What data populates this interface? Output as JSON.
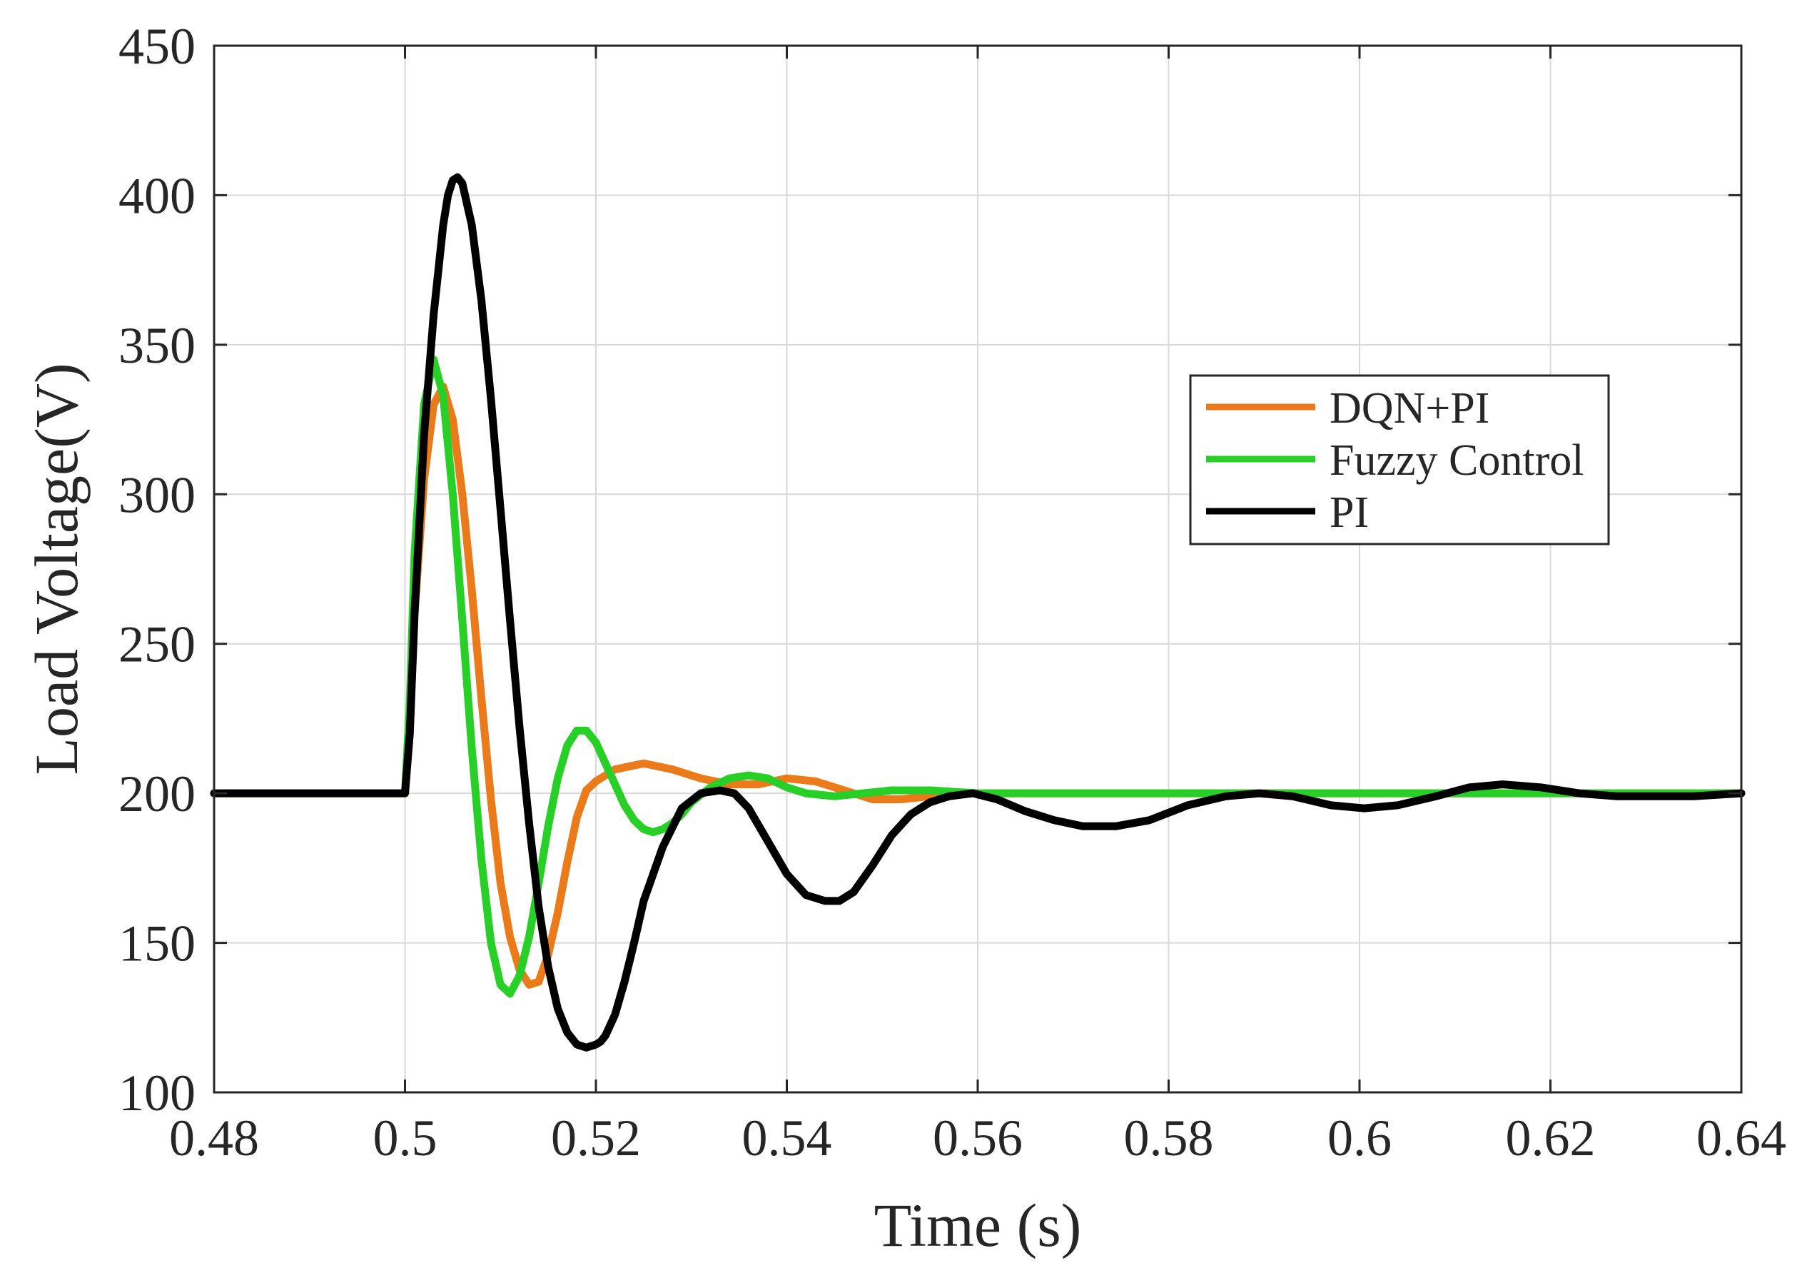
{
  "chart_data": {
    "type": "line",
    "title": "",
    "xlabel": "Time (s)",
    "ylabel": "Load Voltage(V)",
    "xlim": [
      0.48,
      0.64
    ],
    "ylim": [
      100,
      450
    ],
    "grid": true,
    "legend_position": "upper-right",
    "x_ticks": [
      0.48,
      0.5,
      0.52,
      0.54,
      0.56,
      0.58,
      0.6,
      0.62,
      0.64
    ],
    "x_tick_labels": [
      "0.48",
      "0.5",
      "0.52",
      "0.54",
      "0.56",
      "0.58",
      "0.6",
      "0.62",
      "0.64"
    ],
    "y_ticks": [
      100,
      150,
      200,
      250,
      300,
      350,
      400,
      450
    ],
    "y_tick_labels": [
      "100",
      "150",
      "200",
      "250",
      "300",
      "350",
      "400",
      "450"
    ],
    "series": [
      {
        "name": "DQN+PI",
        "color": "#ea7a1a",
        "x": [
          0.48,
          0.5,
          0.5005,
          0.501,
          0.502,
          0.503,
          0.504,
          0.505,
          0.506,
          0.507,
          0.508,
          0.509,
          0.51,
          0.511,
          0.512,
          0.513,
          0.514,
          0.515,
          0.516,
          0.517,
          0.518,
          0.519,
          0.52,
          0.522,
          0.525,
          0.528,
          0.531,
          0.534,
          0.537,
          0.54,
          0.543,
          0.546,
          0.549,
          0.552,
          0.555,
          0.558,
          0.561,
          0.565,
          0.57,
          0.64
        ],
        "y": [
          200,
          200,
          220,
          260,
          305,
          330,
          336,
          325,
          300,
          268,
          232,
          198,
          170,
          152,
          141,
          136,
          137,
          146,
          160,
          177,
          192,
          201,
          204,
          208,
          210,
          208,
          205,
          203,
          203,
          205,
          204,
          201,
          198,
          198,
          199,
          200,
          200,
          200,
          200,
          200
        ]
      },
      {
        "name": "Fuzzy Control",
        "color": "#27cf27",
        "x": [
          0.48,
          0.5,
          0.5005,
          0.501,
          0.502,
          0.503,
          0.504,
          0.505,
          0.506,
          0.507,
          0.508,
          0.509,
          0.51,
          0.511,
          0.512,
          0.513,
          0.514,
          0.515,
          0.516,
          0.517,
          0.518,
          0.519,
          0.52,
          0.521,
          0.522,
          0.523,
          0.524,
          0.525,
          0.526,
          0.527,
          0.528,
          0.529,
          0.53,
          0.532,
          0.534,
          0.536,
          0.538,
          0.54,
          0.542,
          0.545,
          0.548,
          0.551,
          0.555,
          0.56,
          0.64
        ],
        "y": [
          200,
          200,
          230,
          280,
          330,
          345,
          333,
          300,
          258,
          215,
          178,
          150,
          136,
          133,
          139,
          152,
          170,
          189,
          205,
          216,
          221,
          221,
          217,
          210,
          203,
          196,
          191,
          188,
          187,
          188,
          190,
          193,
          197,
          202,
          205,
          206,
          205,
          202,
          200,
          199,
          200,
          201,
          201,
          200,
          200
        ]
      },
      {
        "name": "PI",
        "color": "#000000",
        "x": [
          0.48,
          0.5,
          0.5005,
          0.501,
          0.502,
          0.503,
          0.504,
          0.5045,
          0.505,
          0.5055,
          0.506,
          0.507,
          0.508,
          0.509,
          0.51,
          0.511,
          0.512,
          0.513,
          0.514,
          0.515,
          0.516,
          0.517,
          0.518,
          0.519,
          0.52,
          0.5205,
          0.521,
          0.522,
          0.523,
          0.524,
          0.525,
          0.527,
          0.529,
          0.531,
          0.533,
          0.5345,
          0.536,
          0.538,
          0.54,
          0.542,
          0.544,
          0.5455,
          0.547,
          0.549,
          0.551,
          0.553,
          0.555,
          0.557,
          0.5595,
          0.562,
          0.565,
          0.568,
          0.571,
          0.5745,
          0.578,
          0.582,
          0.586,
          0.5895,
          0.593,
          0.597,
          0.6005,
          0.604,
          0.608,
          0.6115,
          0.615,
          0.619,
          0.623,
          0.627,
          0.631,
          0.635,
          0.64
        ],
        "y": [
          200,
          200,
          220,
          260,
          320,
          360,
          390,
          400,
          405,
          406,
          404,
          390,
          365,
          332,
          295,
          258,
          222,
          190,
          162,
          142,
          128,
          120,
          116,
          115,
          116,
          117,
          119,
          126,
          137,
          150,
          164,
          182,
          195,
          200,
          201,
          200,
          195,
          184,
          173,
          166,
          164,
          164,
          167,
          176,
          186,
          193,
          197,
          199,
          200,
          198,
          194,
          191,
          189,
          189,
          191,
          196,
          199,
          200,
          199,
          196,
          195,
          196,
          199,
          202,
          203,
          202,
          200,
          199,
          199,
          199,
          200
        ]
      }
    ]
  }
}
